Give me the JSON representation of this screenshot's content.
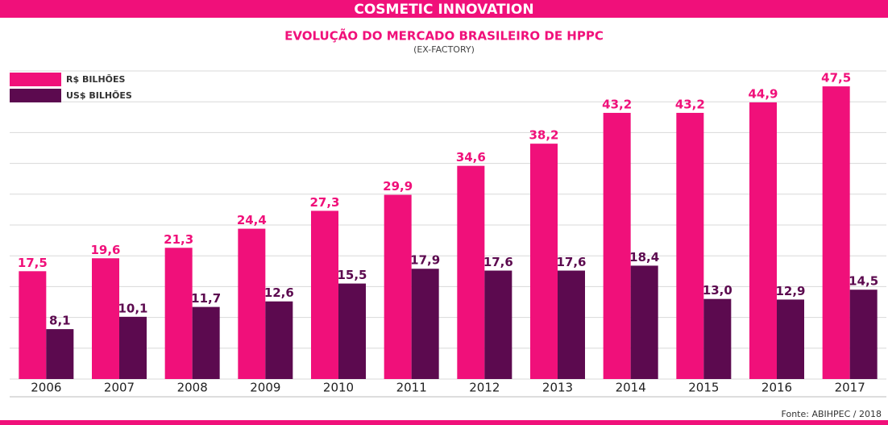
{
  "header": "COSMETIC INNOVATION",
  "chart_data": {
    "type": "bar",
    "title": "EVOLUÇÃO DO MERCADO BRASILEIRO DE HPPC",
    "subtitle": "(EX-FACTORY)",
    "categories": [
      "2006",
      "2007",
      "2008",
      "2009",
      "2010",
      "2011",
      "2012",
      "2013",
      "2014",
      "2015",
      "2016",
      "2017"
    ],
    "series": [
      {
        "name": "R$ BILHÕES",
        "color": "#f0107a",
        "values": [
          17.5,
          19.6,
          21.3,
          24.4,
          27.3,
          29.9,
          34.6,
          38.2,
          43.2,
          43.2,
          44.9,
          47.5
        ],
        "value_labels": [
          "17,5",
          "19,6",
          "21,3",
          "24,4",
          "27,3",
          "29,9",
          "34,6",
          "38,2",
          "43,2",
          "43,2",
          "44,9",
          "47,5"
        ]
      },
      {
        "name": "US$ BILHÕES",
        "color": "#5c0a4f",
        "values": [
          8.1,
          10.1,
          11.7,
          12.6,
          15.5,
          17.9,
          17.6,
          17.6,
          18.4,
          13.0,
          12.9,
          14.5
        ],
        "value_labels": [
          "8,1",
          "10,1",
          "11,7",
          "12,6",
          "15,5",
          "17,9",
          "17,6",
          "17,6",
          "18,4",
          "13,0",
          "12,9",
          "14,5"
        ]
      }
    ],
    "ylim": [
      0,
      50
    ],
    "yticks": [
      0,
      5,
      10,
      15,
      20,
      25,
      30,
      35,
      40,
      45,
      50
    ],
    "grid": true,
    "legend": "top-left",
    "source": "Fonte: ABIHPEC / 2018"
  }
}
